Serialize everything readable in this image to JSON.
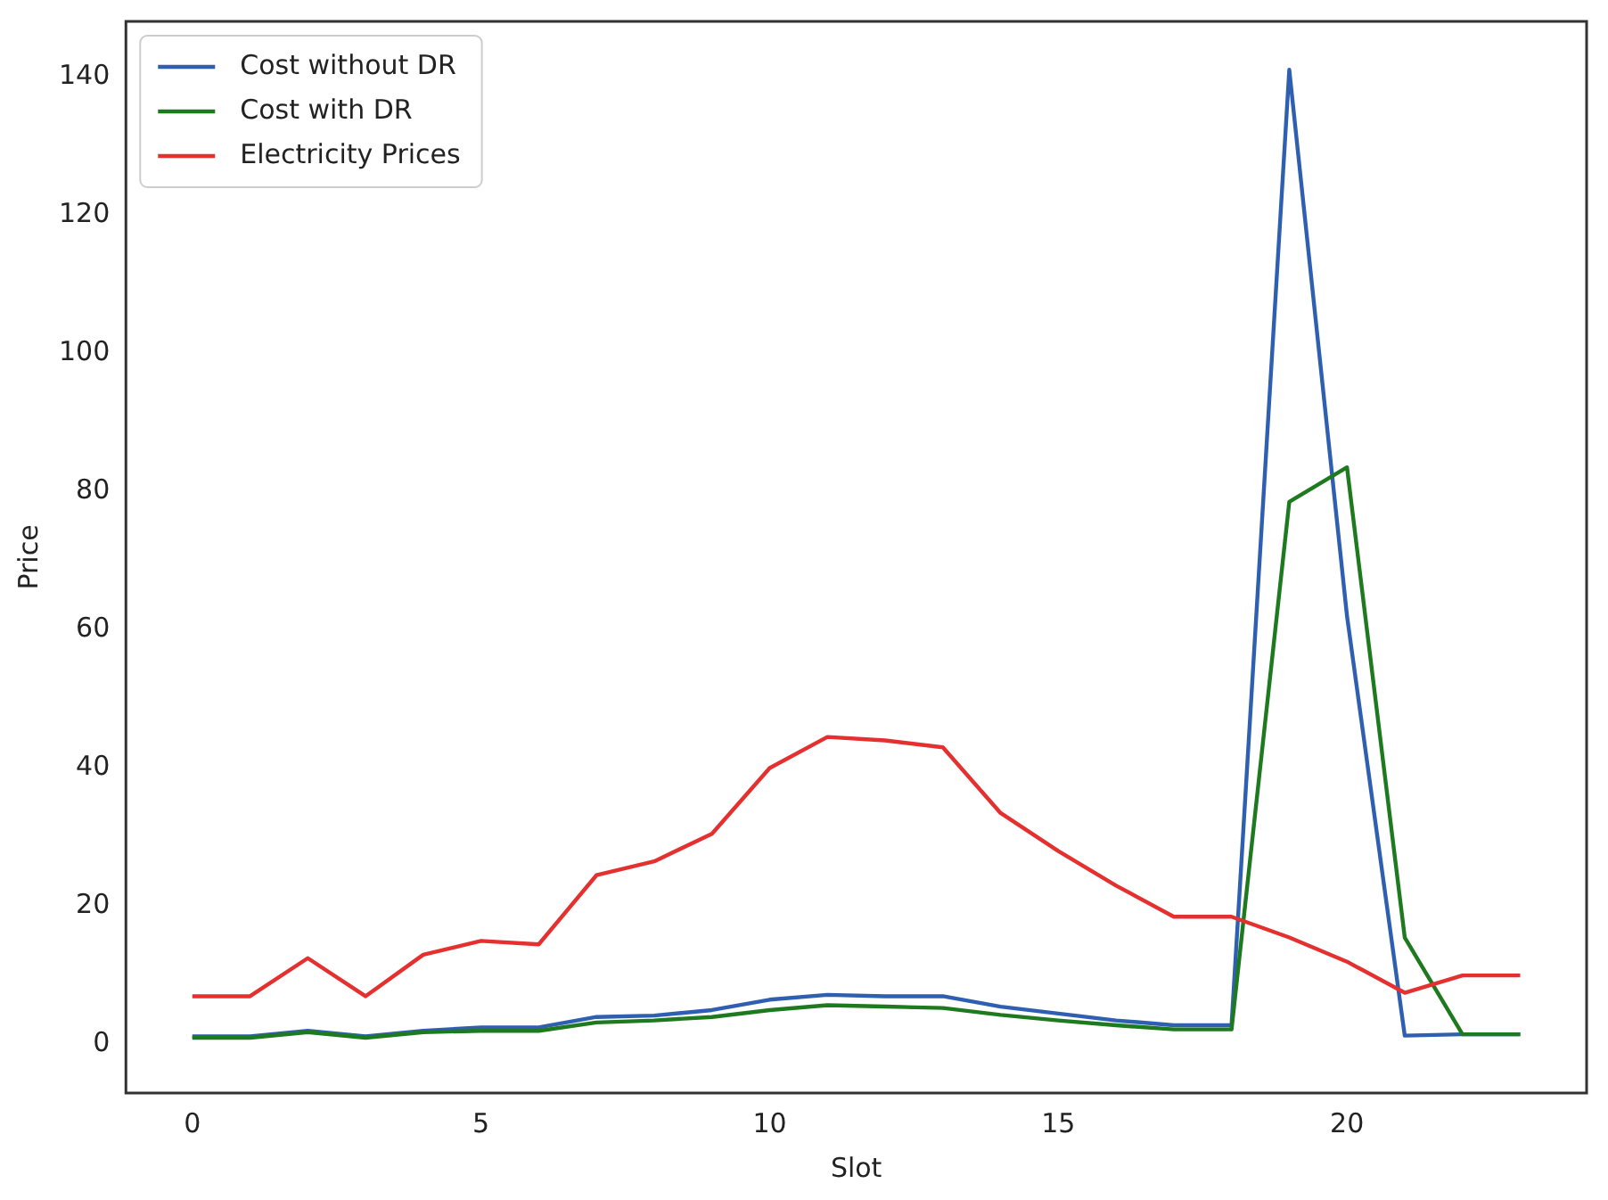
{
  "chart_data": {
    "type": "line",
    "xlabel": "Slot",
    "ylabel": "Price",
    "x": [
      0,
      1,
      2,
      3,
      4,
      5,
      6,
      7,
      8,
      9,
      10,
      11,
      12,
      13,
      14,
      15,
      16,
      17,
      18,
      19,
      20,
      21,
      22,
      23
    ],
    "series": [
      {
        "name": "Cost without DR",
        "color": "#2f5fb0",
        "values": [
          1.2,
          1.2,
          2,
          1.2,
          2,
          2.5,
          2.5,
          4,
          4.2,
          5,
          6.5,
          7.2,
          7,
          7,
          5.5,
          4.5,
          3.5,
          2.8,
          2.8,
          141,
          62,
          1.3,
          1.5,
          1.5
        ]
      },
      {
        "name": "Cost with DR",
        "color": "#1e7a1e",
        "values": [
          1,
          1,
          1.8,
          1,
          1.8,
          2,
          2,
          3.2,
          3.5,
          4,
          5,
          5.7,
          5.5,
          5.3,
          4.3,
          3.5,
          2.8,
          2.2,
          2.2,
          78.5,
          83.5,
          15.5,
          1.5,
          1.5
        ]
      },
      {
        "name": "Electricity Prices",
        "color": "#e53030",
        "values": [
          7,
          7,
          12.5,
          7,
          13,
          15,
          14.5,
          24.5,
          26.5,
          30.5,
          40,
          44.5,
          44,
          43,
          33.5,
          28,
          23,
          18.5,
          18.5,
          15.5,
          12,
          7.5,
          10,
          10
        ]
      }
    ],
    "xlim": [
      -1.15,
      24.15
    ],
    "xticks": [
      0,
      5,
      10,
      15,
      20
    ],
    "ylim": [
      -7,
      148
    ],
    "yticks": [
      0,
      20,
      40,
      60,
      80,
      100,
      120,
      140
    ],
    "grid": false,
    "legend": "top left",
    "marker": "none",
    "line_style": "solid"
  }
}
